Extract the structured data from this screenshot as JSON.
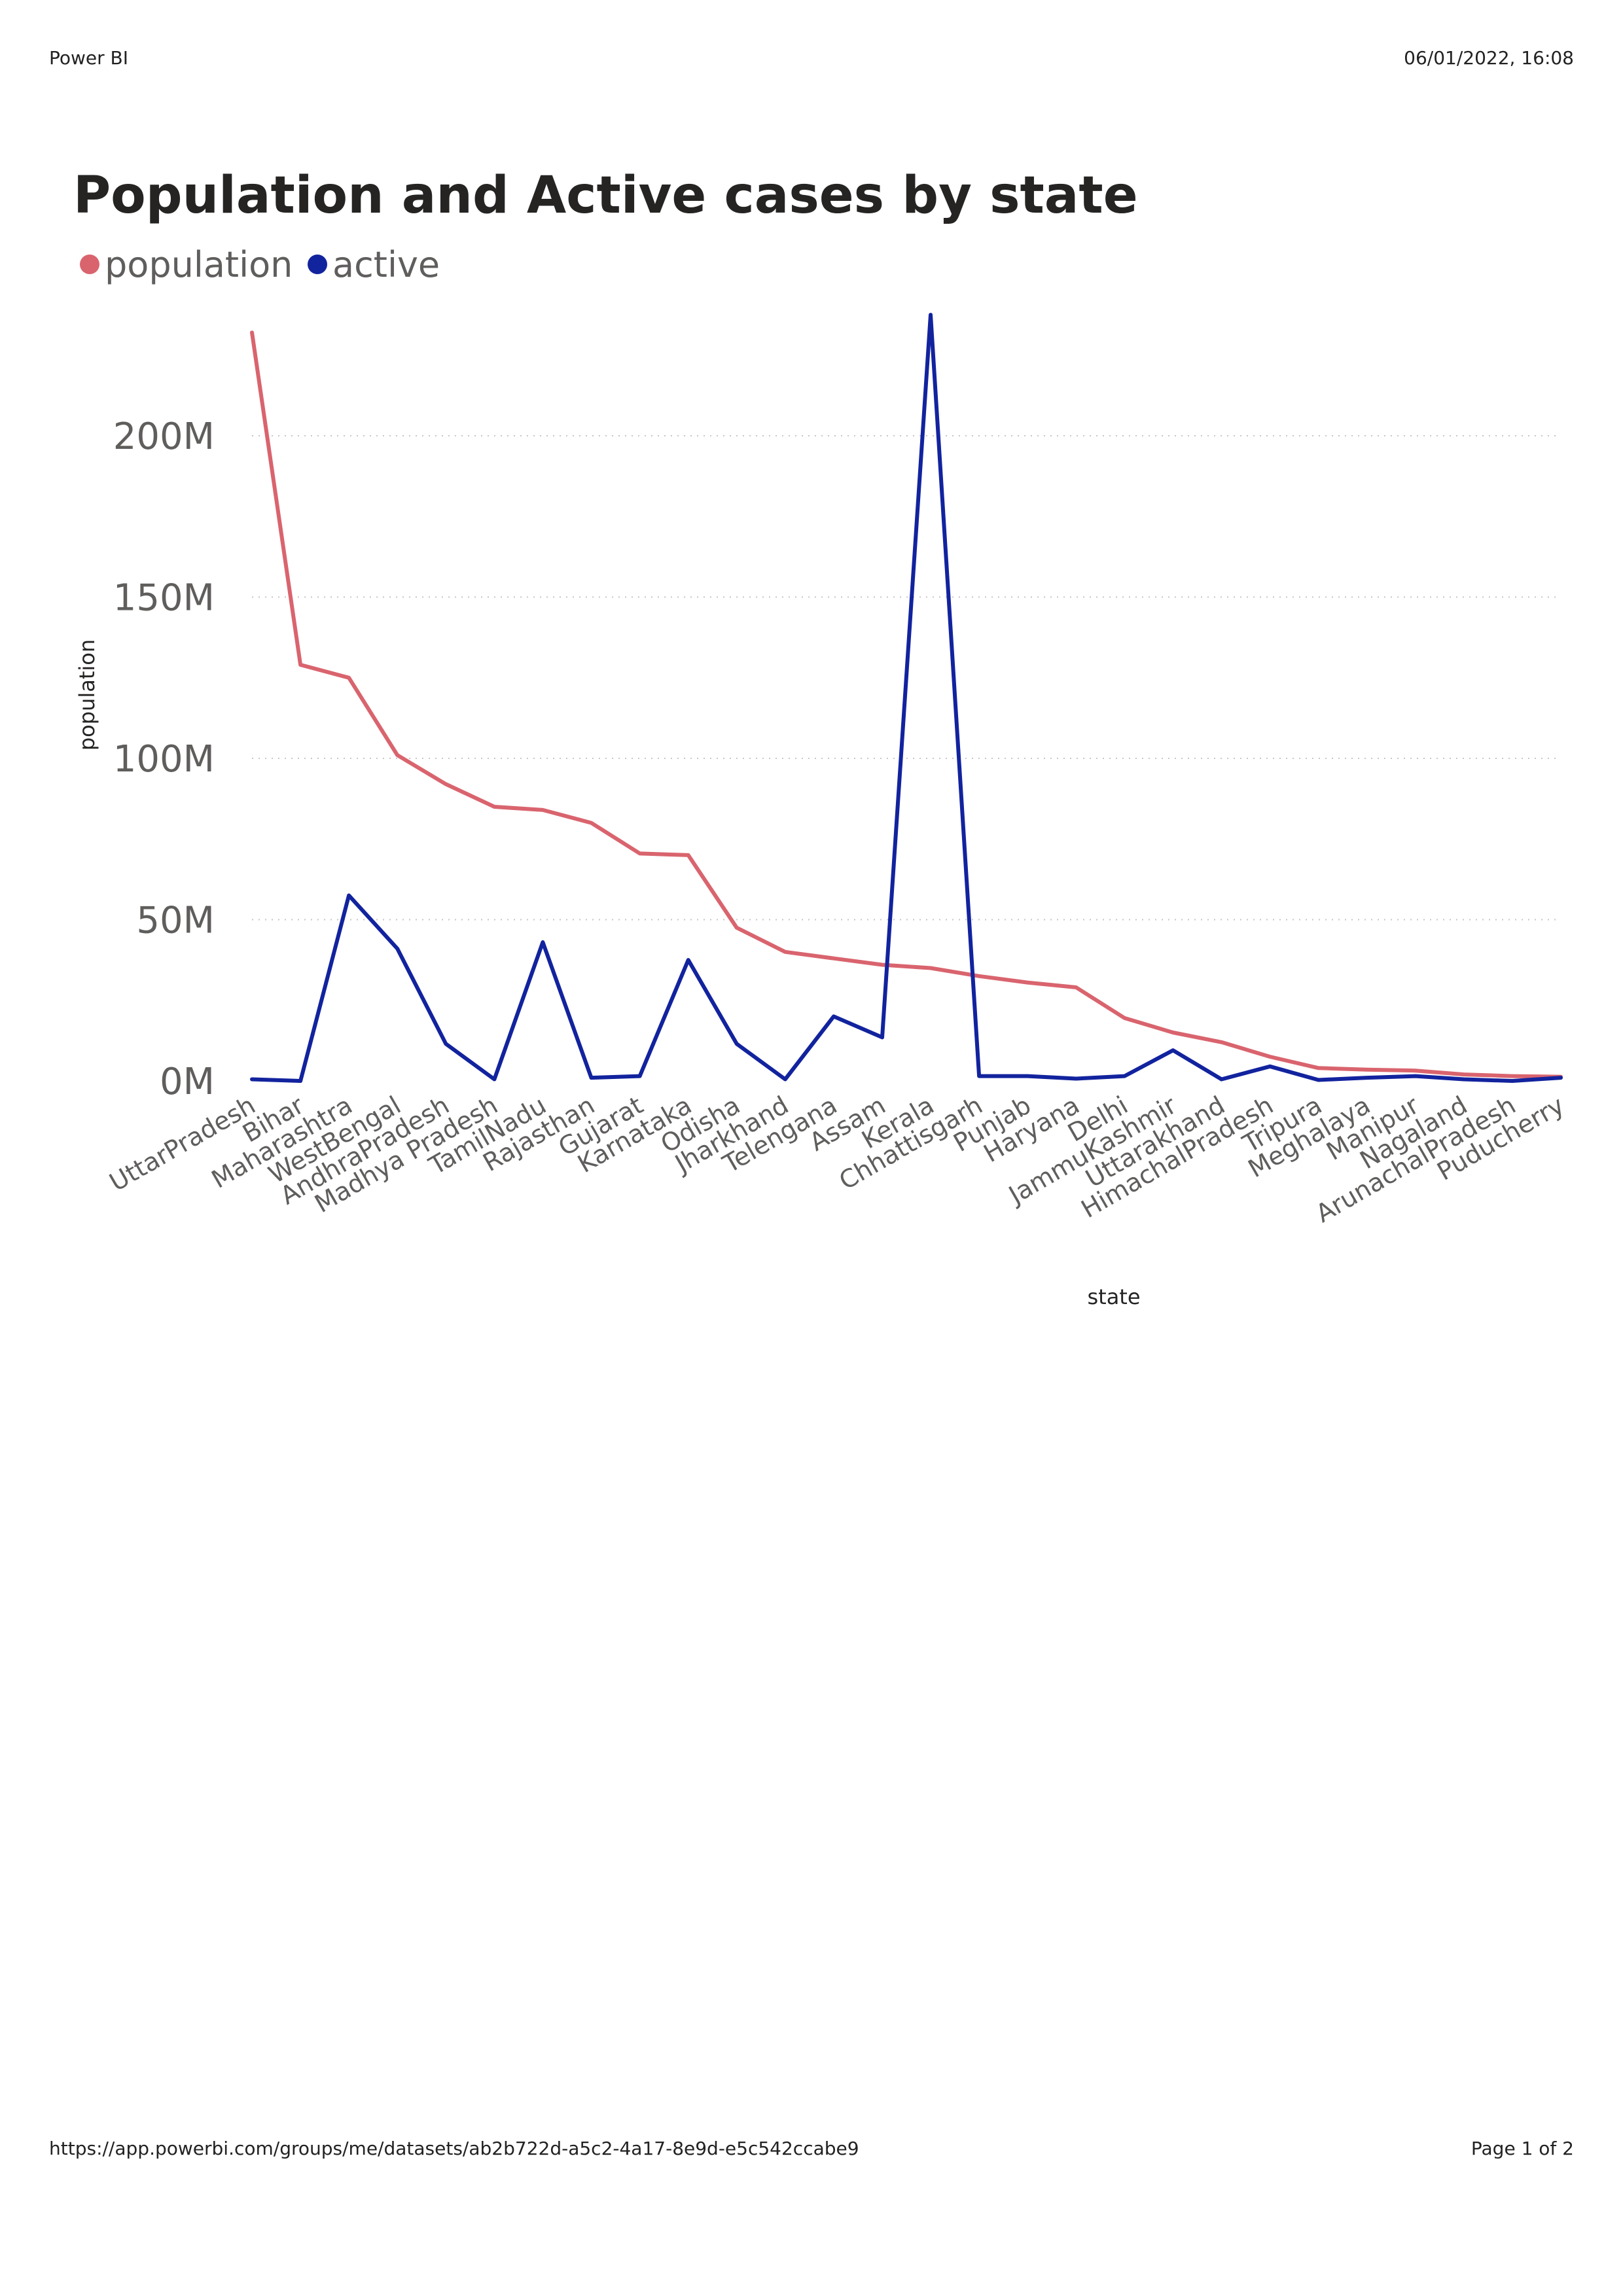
{
  "page_header": {
    "app_name": "Power BI",
    "timestamp": "06/01/2022, 16:08"
  },
  "page_footer": {
    "url": "https://app.powerbi.com/groups/me/datasets/ab2b722d-a5c2-4a17-8e9d-e5c542ccabe9",
    "page_indicator": "Page 1 of 2"
  },
  "chart_data": {
    "type": "line",
    "title": "Population and Active cases by state",
    "xlabel": "state",
    "ylabel": "population",
    "ylim": [
      0,
      240000000
    ],
    "yticks": [
      0,
      50000000,
      100000000,
      150000000,
      200000000
    ],
    "ytick_labels": [
      "0M",
      "50M",
      "100M",
      "150M",
      "200M"
    ],
    "grid": true,
    "legend_position": "top-left",
    "categories": [
      "UttarPradesh",
      "Bihar",
      "Maharashtra",
      "WestBengal",
      "AndhraPradesh",
      "Madhya Pradesh",
      "TamilNadu",
      "Rajasthan",
      "Gujarat",
      "Karnataka",
      "Odisha",
      "Jharkhand",
      "Telengana",
      "Assam",
      "Kerala",
      "Chhattisgarh",
      "Punjab",
      "Haryana",
      "Delhi",
      "JammuKashmir",
      "Uttarakhand",
      "HimachalPradesh",
      "Tripura",
      "Meghalaya",
      "Manipur",
      "Nagaland",
      "ArunachalPradesh",
      "Puducherry"
    ],
    "series": [
      {
        "name": "population",
        "color": "#d9646e",
        "values": [
          232000000,
          129000000,
          125000000,
          101000000,
          92000000,
          85000000,
          84000000,
          80000000,
          70500000,
          70000000,
          47500000,
          40000000,
          38000000,
          36000000,
          35000000,
          32500000,
          30500000,
          29000000,
          19500000,
          15000000,
          12000000,
          7500000,
          4000000,
          3500000,
          3200000,
          2000000,
          1500000,
          1300000
        ]
      },
      {
        "name": "active",
        "color": "#12239e",
        "values": [
          500000,
          0,
          57500000,
          41000000,
          11500000,
          500000,
          43000000,
          1000000,
          1500000,
          37500000,
          11500000,
          500000,
          20000000,
          13500000,
          237500000,
          1500000,
          1500000,
          700000,
          1500000,
          9500000,
          500000,
          4500000,
          300000,
          1000000,
          1500000,
          500000,
          0,
          1000000
        ]
      }
    ]
  }
}
